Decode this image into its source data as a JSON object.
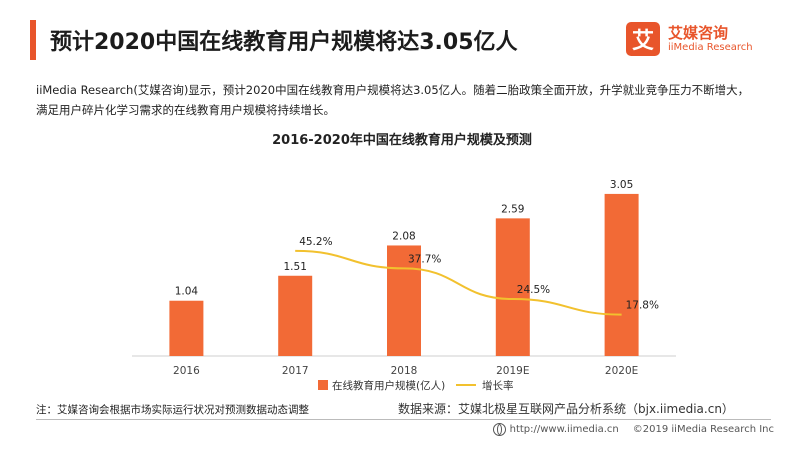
{
  "headline": "预计2020中国在线教育用户规模将达3.05亿人",
  "logo": {
    "mark": "艾",
    "name": "艾媒咨询",
    "sub": "iiMedia Research"
  },
  "intro": "iiMedia Research(艾媒咨询)显示，预计2020中国在线教育用户规模将达3.05亿人。随着二胎政策全面开放，升学就业竞争压力不断增大，满足用户碎片化学习需求的在线教育用户规模将持续增长。",
  "colors": {
    "bar": "#f26a36",
    "line": "#f2c12e",
    "accent": "#e8552b"
  },
  "chart_data": {
    "type": "bar",
    "title": "2016-2020年中国在线教育用户规模及预测",
    "categories": [
      "2016",
      "2017",
      "2018",
      "2019E",
      "2020E"
    ],
    "series": [
      {
        "name": "在线教育用户规模(亿人)",
        "type": "bar",
        "values": [
          1.04,
          1.51,
          2.08,
          2.59,
          3.05
        ],
        "labels": [
          "1.04",
          "1.51",
          "2.08",
          "2.59",
          "3.05"
        ]
      },
      {
        "name": "增长率",
        "type": "line",
        "values": [
          null,
          45.2,
          37.7,
          24.5,
          17.8
        ],
        "labels": [
          "",
          "45.2%",
          "37.7%",
          "24.5%",
          "17.8%"
        ]
      }
    ],
    "ylim": [
      0,
      3.5
    ],
    "y2lim": [
      0,
      80
    ],
    "grid": false,
    "legend": "bottom"
  },
  "footnote": "注：艾媒咨询会根据市场实际运行状况对预测数据动态调整",
  "source": "数据来源：艾媒北极星互联网产品分析系统（bjx.iimedia.cn）",
  "copyright": {
    "url": "http://www.iimedia.cn",
    "text": "©2019  iiMedia Research  Inc"
  }
}
